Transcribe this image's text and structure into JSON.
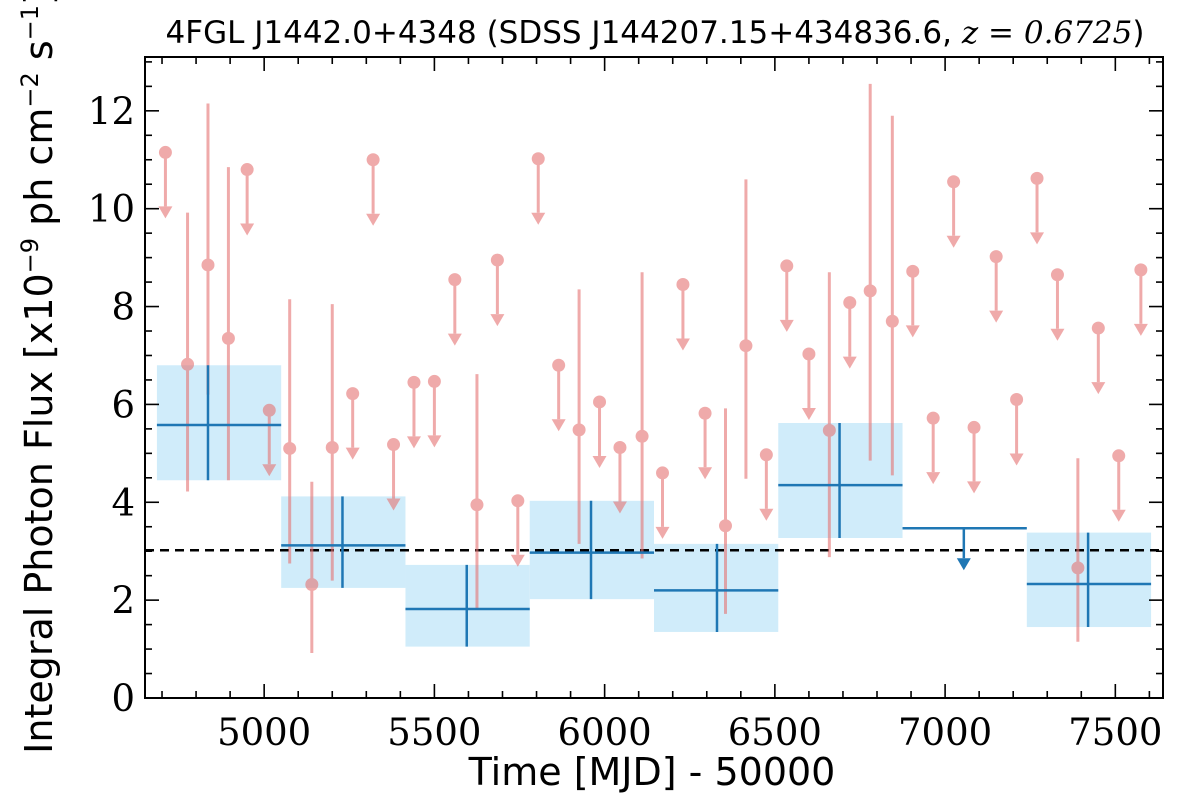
{
  "chart_data": {
    "type": "scatter",
    "title_parts": {
      "prefix": "4FGL J1442.0+4348 (SDSS J144207.15+434836.6, ",
      "math": "z = 0.6725",
      "suffix": ")"
    },
    "xlabel": "Time [MJD] - 50000",
    "ylabel": "Integral Photon Flux [x10",
    "ylabel_exp": "−9",
    "ylabel_mid": " ph cm",
    "ylabel_exp2": "−2",
    "ylabel_mid2": " s",
    "ylabel_exp3": "−1",
    "ylabel_end": "]",
    "xlim": [
      4650,
      7640
    ],
    "ylim": [
      0,
      13.1
    ],
    "xticks": [
      "5000",
      "5500",
      "6000",
      "6500",
      "7000",
      "7500"
    ],
    "yticks": [
      "0",
      "2",
      "4",
      "6",
      "8",
      "10",
      "12"
    ],
    "mean_flux": 3.02,
    "short_bin": {
      "color": "#e57373",
      "detections": [
        {
          "x": 4775,
          "y": 6.82,
          "lo": 4.22,
          "hi": 9.92
        },
        {
          "x": 4835,
          "y": 8.85,
          "lo": 6.2,
          "hi": 12.15
        },
        {
          "x": 4895,
          "y": 7.35,
          "lo": 4.45,
          "hi": 10.85
        },
        {
          "x": 5075,
          "y": 5.1,
          "lo": 2.75,
          "hi": 8.15
        },
        {
          "x": 5140,
          "y": 2.32,
          "lo": 0.92,
          "hi": 4.42
        },
        {
          "x": 5200,
          "y": 5.12,
          "lo": 2.4,
          "hi": 8.05
        },
        {
          "x": 5625,
          "y": 3.95,
          "lo": 1.8,
          "hi": 6.62
        },
        {
          "x": 5925,
          "y": 5.48,
          "lo": 3.15,
          "hi": 8.35
        },
        {
          "x": 6110,
          "y": 5.35,
          "lo": 2.85,
          "hi": 8.7
        },
        {
          "x": 6355,
          "y": 3.52,
          "lo": 1.72,
          "hi": 5.92
        },
        {
          "x": 6415,
          "y": 7.2,
          "lo": 4.48,
          "hi": 10.6
        },
        {
          "x": 6660,
          "y": 5.47,
          "lo": 2.88,
          "hi": 8.7
        },
        {
          "x": 6780,
          "y": 8.32,
          "lo": 4.85,
          "hi": 12.55
        },
        {
          "x": 6845,
          "y": 7.7,
          "lo": 4.55,
          "hi": 11.9
        },
        {
          "x": 7390,
          "y": 2.66,
          "lo": 1.15,
          "hi": 4.9
        }
      ],
      "upper_limits": [
        {
          "x": 4710,
          "y": 11.15
        },
        {
          "x": 4950,
          "y": 10.8
        },
        {
          "x": 5015,
          "y": 5.88
        },
        {
          "x": 5260,
          "y": 6.22
        },
        {
          "x": 5320,
          "y": 11.0
        },
        {
          "x": 5380,
          "y": 5.18
        },
        {
          "x": 5440,
          "y": 6.45
        },
        {
          "x": 5500,
          "y": 6.47
        },
        {
          "x": 5560,
          "y": 8.55
        },
        {
          "x": 5685,
          "y": 8.95
        },
        {
          "x": 5745,
          "y": 4.03
        },
        {
          "x": 5805,
          "y": 11.02
        },
        {
          "x": 5865,
          "y": 6.8
        },
        {
          "x": 5985,
          "y": 6.05
        },
        {
          "x": 6045,
          "y": 5.12
        },
        {
          "x": 6170,
          "y": 4.6
        },
        {
          "x": 6230,
          "y": 8.45
        },
        {
          "x": 6295,
          "y": 5.82
        },
        {
          "x": 6475,
          "y": 4.97
        },
        {
          "x": 6535,
          "y": 8.83
        },
        {
          "x": 6600,
          "y": 7.03
        },
        {
          "x": 6720,
          "y": 8.08
        },
        {
          "x": 6905,
          "y": 8.72
        },
        {
          "x": 6965,
          "y": 5.72
        },
        {
          "x": 7025,
          "y": 10.55
        },
        {
          "x": 7085,
          "y": 5.53
        },
        {
          "x": 7150,
          "y": 9.02
        },
        {
          "x": 7210,
          "y": 6.1
        },
        {
          "x": 7270,
          "y": 10.62
        },
        {
          "x": 7330,
          "y": 8.65
        },
        {
          "x": 7450,
          "y": 7.56
        },
        {
          "x": 7510,
          "y": 4.95
        },
        {
          "x": 7575,
          "y": 8.75
        }
      ]
    },
    "long_bin": {
      "color": "#1f77b4",
      "box_color": "#d0ecfa",
      "detections": [
        {
          "x0": 4685,
          "x1": 5050,
          "xc": 4835,
          "y": 5.58,
          "lo": 4.45,
          "hi": 6.8
        },
        {
          "x0": 5050,
          "x1": 5415,
          "xc": 5230,
          "y": 3.12,
          "lo": 2.25,
          "hi": 4.12
        },
        {
          "x0": 5415,
          "x1": 5780,
          "xc": 5595,
          "y": 1.82,
          "lo": 1.05,
          "hi": 2.72
        },
        {
          "x0": 5780,
          "x1": 6145,
          "xc": 5960,
          "y": 2.97,
          "lo": 2.02,
          "hi": 4.03
        },
        {
          "x0": 6145,
          "x1": 6510,
          "xc": 6330,
          "y": 2.2,
          "lo": 1.35,
          "hi": 3.15
        },
        {
          "x0": 6510,
          "x1": 6875,
          "xc": 6690,
          "y": 4.35,
          "lo": 3.27,
          "hi": 5.62
        },
        {
          "x0": 7240,
          "x1": 7605,
          "xc": 7420,
          "y": 2.33,
          "lo": 1.45,
          "hi": 3.38
        }
      ],
      "upper_limits": [
        {
          "x0": 6875,
          "x1": 7240,
          "xc": 7055,
          "y": 3.47
        }
      ]
    }
  }
}
